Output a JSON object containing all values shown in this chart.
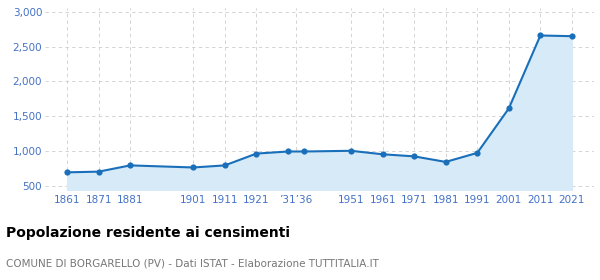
{
  "years": [
    1861,
    1871,
    1881,
    1901,
    1911,
    1921,
    1931,
    1936,
    1951,
    1961,
    1971,
    1981,
    1991,
    2001,
    2011,
    2021
  ],
  "population": [
    690,
    700,
    790,
    760,
    790,
    960,
    990,
    990,
    1000,
    950,
    920,
    840,
    970,
    1610,
    2660,
    2650
  ],
  "line_color": "#1a6fba",
  "fill_color": "#d6eaf7",
  "marker_color": "#1a6fba",
  "bg_color": "#ffffff",
  "grid_color": "#cccccc",
  "ylim": [
    430,
    3050
  ],
  "yticks": [
    500,
    1000,
    1500,
    2000,
    2500,
    3000
  ],
  "title": "Popolazione residente ai censimenti",
  "subtitle": "COMUNE DI BORGARELLO (PV) - Dati ISTAT - Elaborazione TUTTITALIA.IT",
  "title_color": "#000000",
  "subtitle_color": "#777777",
  "axis_label_color": "#4472c4",
  "title_fontsize": 10,
  "subtitle_fontsize": 7.5
}
